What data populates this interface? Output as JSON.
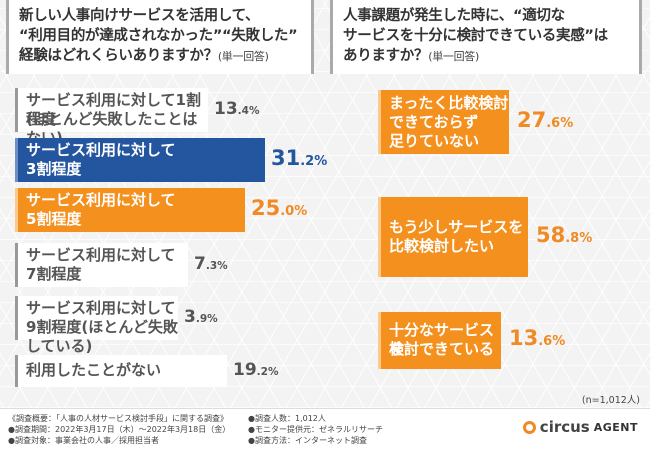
{
  "left": {
    "title_lines": [
      "新しい人事向けサービスを活用して、",
      "“利用目的が達成されなかった”“失敗した”"
    ],
    "title_line3": "経験はどれくらいありますか？",
    "title_note": "(単一回答)"
  },
  "right": {
    "title_lines": [
      "人事課題が発生した時に、“適切な",
      "サービスを十分に検討できている実感”は"
    ],
    "title_line3": "ありますか？",
    "title_note": "(単一回答)"
  },
  "sample_size": "(n=1,012人)",
  "footer": {
    "overview": "《調査概要：「人事の人材サービス検討手段」に関する調査》",
    "period": "●調査期間：2022年3月17日（木）～2022年3月18日（金）",
    "target": "●調査対象：事業会社の人事／採用担当者",
    "count": "●調査人数：1,012人",
    "provider": "●モニター提供元：ゼネラルリサーチ",
    "method": "●調査方法：インターネット調査"
  },
  "logo": {
    "brand": "circus",
    "sub": "AGENT"
  },
  "colors": {
    "orange": "#f4901e",
    "blue": "#2456a0",
    "gray": "#555555"
  },
  "chart_data": [
    {
      "type": "bar",
      "title": "新しい人事向けサービスを活用して、“利用目的が達成されなかった”“失敗した”経験はどれくらいありますか？(単一回答)",
      "categories": [
        "サービス利用に対して1割程度(ほとんど失敗したことはない)",
        "サービス利用に対して3割程度",
        "サービス利用に対して5割程度",
        "サービス利用に対して7割程度",
        "サービス利用に対して9割程度(ほとんど失敗している)",
        "利用したことがない"
      ],
      "labels": [
        [
          "サービス利用に対して1割程度",
          "(ほとんど失敗したことはない)"
        ],
        [
          "サービス利用に対して",
          "3割程度"
        ],
        [
          "サービス利用に対して",
          "5割程度"
        ],
        [
          "サービス利用に対して",
          "7割程度"
        ],
        [
          "サービス利用に対して",
          "9割程度(ほとんど失敗している)"
        ],
        [
          "利用したことがない"
        ]
      ],
      "values": [
        13.4,
        31.2,
        25.0,
        7.3,
        3.9,
        19.2
      ],
      "value_labels": [
        "13.4%",
        "31.2%",
        "25.0%",
        "7.3%",
        "3.9%",
        "19.2%"
      ],
      "highlight": [
        "none",
        "blue",
        "orange",
        "none",
        "none",
        "none"
      ]
    },
    {
      "type": "bar",
      "title": "人事課題が発生した時に、“適切なサービスを十分に検討できている実感”はありますか？(単一回答)",
      "categories": [
        "まったく比較検討できておらず足りていない",
        "もう少しサービスを比較検討したい",
        "十分なサービスを検討できている"
      ],
      "labels": [
        [
          "まったく比較検討",
          "できておらず",
          "足りていない"
        ],
        [
          "もう少しサービスを",
          "比較検討したい"
        ],
        [
          "十分なサービスを",
          "検討できている"
        ]
      ],
      "values": [
        27.6,
        58.8,
        13.6
      ],
      "value_labels": [
        "27.6%",
        "58.8%",
        "13.6%"
      ],
      "highlight": [
        "orange",
        "orange",
        "orange"
      ]
    }
  ]
}
